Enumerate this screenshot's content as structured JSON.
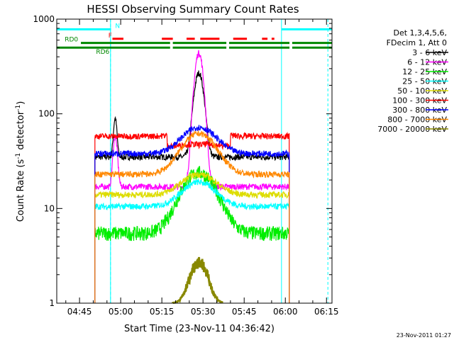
{
  "chart_data": {
    "type": "line",
    "title": "HESSI Observing Summary Count Rates",
    "xlabel": "Start Time (23-Nov-11 04:36:42)",
    "ylabel_main": "Count Rate (s",
    "ylabel_sup": "-1",
    "ylabel_mid": " detector",
    "ylabel_close": ")",
    "y_scale": "log",
    "ylim": [
      1,
      1000
    ],
    "y_ticks": [
      {
        "value": 1,
        "label": "1"
      },
      {
        "value": 10,
        "label": "10"
      },
      {
        "value": 100,
        "label": "100"
      },
      {
        "value": 1000,
        "label": "1000"
      }
    ],
    "x_range_minutes": [
      36.7,
      137.0
    ],
    "x_ticks": [
      {
        "minute": 45,
        "label": "04:45"
      },
      {
        "minute": 60,
        "label": "05:00"
      },
      {
        "minute": 75,
        "label": "05:15"
      },
      {
        "minute": 90,
        "label": "05:30"
      },
      {
        "minute": 105,
        "label": "05:45"
      },
      {
        "minute": 120,
        "label": "06:00"
      },
      {
        "minute": 135,
        "label": "06:15"
      }
    ],
    "legend_header": [
      "Det 1,3,4,5,6,",
      "FDecim 1, Att 0"
    ],
    "legend_placement": "right",
    "series": [
      {
        "name": "3 - 6 keV",
        "color": "#000000",
        "base": 35,
        "peak": 270,
        "width": 2.2
      },
      {
        "name": "6 - 12 keV",
        "color": "#ff00ff",
        "base": 17,
        "peak": 440,
        "width": 2.0
      },
      {
        "name": "12 - 25 keV",
        "color": "#00ee00",
        "base": 5.5,
        "peak": 24,
        "width": 8
      },
      {
        "name": "25 - 50 keV",
        "color": "#00ffff",
        "base": 10.5,
        "peak": 19,
        "width": 8
      },
      {
        "name": "50 - 100 keV",
        "color": "#dddd00",
        "base": 14,
        "peak": 23,
        "width": 8
      },
      {
        "name": "100 - 300 keV",
        "color": "#ff0000",
        "base": 58,
        "peak": 53,
        "width": 8
      },
      {
        "name": "300 - 800 keV",
        "color": "#0000ff",
        "base": 38,
        "peak": 72,
        "width": 8
      },
      {
        "name": "800 - 7000 keV",
        "color": "#ff8800",
        "base": 23,
        "peak": 62,
        "width": 8
      },
      {
        "name": "7000 - 20000 keV",
        "color": "#888800",
        "base": 1,
        "peak": 3.2,
        "width": 4
      }
    ],
    "data_window_minutes": [
      50.6,
      121.5
    ],
    "status_bars": [
      {
        "label": "N",
        "color": "#00ffff",
        "value": 780,
        "segments": [
          [
            36.7,
            56.5
          ],
          [
            118.6,
            137.0
          ]
        ]
      },
      {
        "label": "F",
        "color": "#ff0000",
        "value": 620,
        "segments": [
          [
            57.0,
            61.0
          ],
          [
            75.0,
            79.0
          ],
          [
            84.0,
            87.0
          ],
          [
            89.0,
            96.0
          ],
          [
            101.0,
            106.0
          ],
          [
            111.5,
            113.5
          ],
          [
            115.0,
            116.0
          ]
        ]
      },
      {
        "label": "RD0",
        "color": "#008800",
        "value": 560,
        "segments": [
          [
            45.5,
            78.0
          ],
          [
            79.0,
            98.5
          ],
          [
            99.5,
            121.5
          ],
          [
            122.5,
            137.0
          ]
        ]
      },
      {
        "label": "RD6",
        "color": "#008800",
        "value": 500,
        "segments": [
          [
            36.7,
            78.0
          ],
          [
            79.0,
            98.5
          ],
          [
            99.5,
            121.5
          ],
          [
            122.5,
            137.0
          ]
        ]
      }
    ],
    "night_markers_minutes": [
      56.3,
      118.6
    ],
    "saa_dashed_minutes": [
      56.3,
      135.5
    ],
    "footer_timestamp": "23-Nov-2011 01:27"
  }
}
